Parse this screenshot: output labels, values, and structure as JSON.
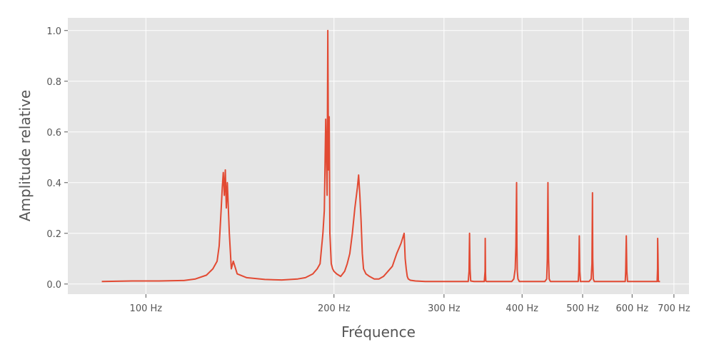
{
  "chart_data": {
    "type": "line",
    "title": "",
    "xlabel": "Fréquence",
    "ylabel": "Amplitude relative",
    "x_scale": "log",
    "xlim": [
      75,
      740
    ],
    "ylim": [
      -0.04,
      1.05
    ],
    "grid": true,
    "x_ticks": [
      {
        "value": 100,
        "label": "100 Hz"
      },
      {
        "value": 200,
        "label": "200 Hz"
      },
      {
        "value": 300,
        "label": "300 Hz"
      },
      {
        "value": 400,
        "label": "400 Hz"
      },
      {
        "value": 500,
        "label": "500 Hz"
      },
      {
        "value": 600,
        "label": "600 Hz"
      },
      {
        "value": 700,
        "label": "700 Hz"
      }
    ],
    "y_ticks": [
      {
        "value": 0.0,
        "label": "0.0"
      },
      {
        "value": 0.2,
        "label": "0.2"
      },
      {
        "value": 0.4,
        "label": "0.4"
      },
      {
        "value": 0.6,
        "label": "0.6"
      },
      {
        "value": 0.8,
        "label": "0.8"
      },
      {
        "value": 1.0,
        "label": "1.0"
      }
    ],
    "series": [
      {
        "color": "#e24a33",
        "x": [
          85,
          95,
          105,
          115,
          120,
          125,
          128,
          130,
          131,
          132,
          132.5,
          133,
          133.5,
          134,
          134.5,
          135,
          136,
          137,
          138,
          140,
          145,
          155,
          165,
          175,
          180,
          185,
          188,
          190,
          192,
          193,
          194,
          195,
          195.5,
          196,
          196.5,
          197,
          198,
          199,
          200,
          202,
          205,
          208,
          210,
          212,
          214,
          216,
          218,
          219,
          220,
          221,
          222,
          223,
          225,
          228,
          232,
          236,
          240,
          244,
          248,
          252,
          256,
          259,
          260,
          261,
          262,
          263,
          265,
          270,
          280,
          290,
          300,
          310,
          320,
          328,
          329,
          329.6,
          330.2,
          331,
          335,
          340,
          345,
          348,
          349,
          349.2,
          349.6,
          350,
          351,
          355,
          365,
          375,
          385,
          388,
          390,
          391,
          392,
          392.5,
          393,
          394,
          396,
          405,
          415,
          425,
          435,
          438,
          439,
          440,
          441,
          442,
          444,
          450,
          460,
          470,
          480,
          490,
          492,
          493,
          493.9,
          494.8,
          496,
          505,
          512,
          516,
          517.5,
          518.5,
          519,
          520,
          522,
          530,
          545,
          560,
          575,
          585,
          586,
          587.3,
          588.5,
          590,
          600,
          620,
          640,
          655,
          658,
          659,
          659.3,
          660,
          661,
          665
        ],
        "y": [
          0.01,
          0.012,
          0.012,
          0.014,
          0.02,
          0.035,
          0.06,
          0.09,
          0.15,
          0.3,
          0.38,
          0.44,
          0.35,
          0.45,
          0.3,
          0.4,
          0.2,
          0.06,
          0.09,
          0.04,
          0.025,
          0.018,
          0.016,
          0.02,
          0.025,
          0.04,
          0.06,
          0.08,
          0.2,
          0.29,
          0.65,
          0.35,
          1.0,
          0.45,
          0.66,
          0.2,
          0.08,
          0.06,
          0.05,
          0.04,
          0.03,
          0.05,
          0.08,
          0.12,
          0.2,
          0.3,
          0.38,
          0.43,
          0.35,
          0.25,
          0.12,
          0.06,
          0.04,
          0.03,
          0.02,
          0.02,
          0.03,
          0.05,
          0.07,
          0.12,
          0.16,
          0.2,
          0.1,
          0.06,
          0.03,
          0.02,
          0.015,
          0.012,
          0.01,
          0.01,
          0.01,
          0.01,
          0.01,
          0.01,
          0.05,
          0.2,
          0.06,
          0.012,
          0.01,
          0.01,
          0.01,
          0.01,
          0.05,
          0.18,
          0.04,
          0.012,
          0.01,
          0.01,
          0.01,
          0.01,
          0.01,
          0.02,
          0.06,
          0.15,
          0.4,
          0.15,
          0.05,
          0.02,
          0.01,
          0.01,
          0.01,
          0.01,
          0.01,
          0.02,
          0.1,
          0.4,
          0.1,
          0.02,
          0.01,
          0.01,
          0.01,
          0.01,
          0.01,
          0.01,
          0.01,
          0.05,
          0.19,
          0.05,
          0.01,
          0.01,
          0.01,
          0.02,
          0.08,
          0.36,
          0.1,
          0.02,
          0.01,
          0.01,
          0.01,
          0.01,
          0.01,
          0.01,
          0.05,
          0.19,
          0.05,
          0.01,
          0.01,
          0.01,
          0.01,
          0.01,
          0.01,
          0.06,
          0.18,
          0.12,
          0.01,
          0.01
        ]
      }
    ]
  }
}
